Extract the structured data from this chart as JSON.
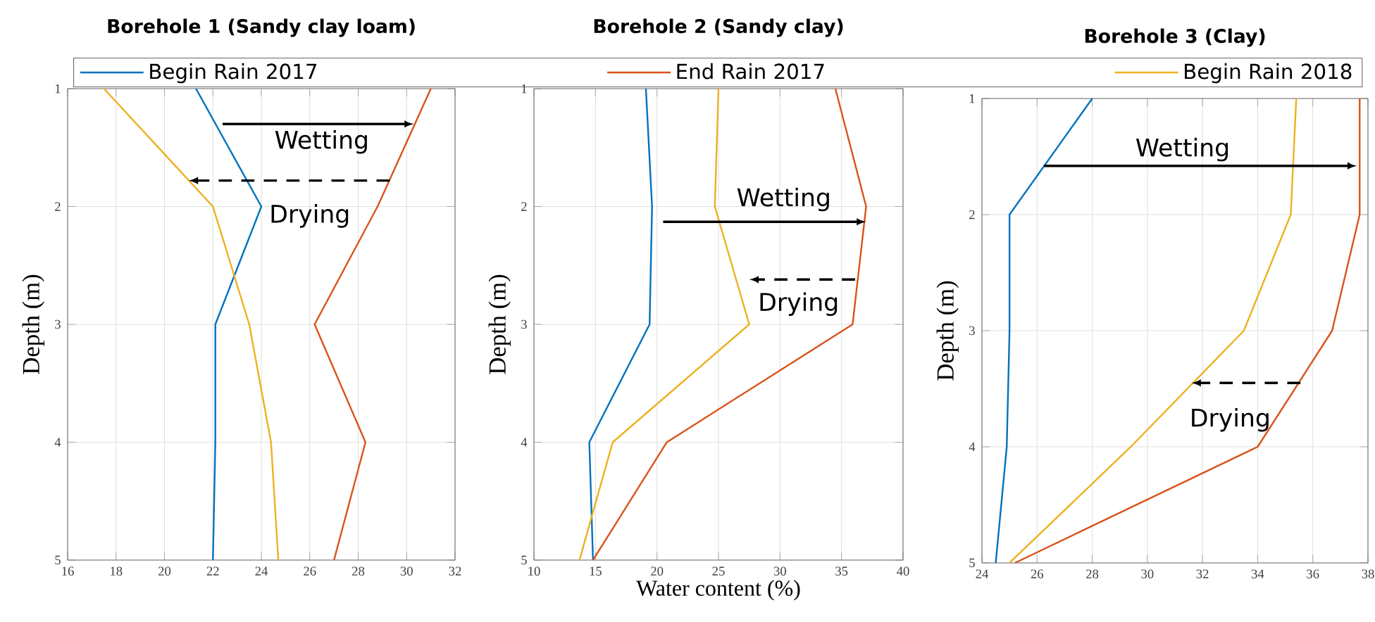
{
  "chart_data": [
    {
      "type": "line",
      "title": "Borehole 1 (Sandy clay loam)",
      "ylabel": "Depth (m)",
      "xlim": [
        16,
        32
      ],
      "xticks": [
        16,
        18,
        20,
        22,
        24,
        26,
        28,
        30,
        32
      ],
      "ylim": [
        5,
        1
      ],
      "yticks": [
        1,
        2,
        3,
        4,
        5
      ],
      "grid": true,
      "legend": "top",
      "series": [
        {
          "name": "Begin Rain 2017",
          "color": "#0072bd",
          "x": [
            21.3,
            24.0,
            22.1,
            22.1,
            22.0
          ],
          "values": [
            1,
            2,
            3,
            4,
            5
          ]
        },
        {
          "name": "End Rain 2017",
          "color": "#d95319",
          "x": [
            31.0,
            28.8,
            26.2,
            28.3,
            27.0
          ],
          "values": [
            1,
            2,
            3,
            4,
            5
          ]
        },
        {
          "name": "Begin Rain 2018",
          "color": "#edb120",
          "x": [
            17.5,
            22.0,
            23.5,
            24.4,
            24.7
          ],
          "values": [
            1,
            2,
            3,
            4,
            5
          ]
        }
      ],
      "annotations": [
        "Wetting",
        "Drying"
      ]
    },
    {
      "type": "line",
      "title": "Borehole 2 (Sandy clay)",
      "xlabel": "Water content (%)",
      "ylabel": "Depth (m)",
      "xlim": [
        10,
        40
      ],
      "xticks": [
        10,
        15,
        20,
        25,
        30,
        35,
        40
      ],
      "ylim": [
        5,
        1
      ],
      "yticks": [
        1,
        2,
        3,
        4,
        5
      ],
      "grid": true,
      "series": [
        {
          "color": "#0072bd",
          "x": [
            19.1,
            19.6,
            19.4,
            14.5,
            14.8
          ],
          "values": [
            1,
            2,
            3,
            4,
            5
          ]
        },
        {
          "color": "#d95319",
          "x": [
            34.5,
            37.0,
            35.9,
            20.8,
            14.8
          ],
          "values": [
            1,
            2,
            3,
            4,
            5
          ]
        },
        {
          "color": "#edb120",
          "x": [
            25.0,
            24.7,
            27.5,
            16.4,
            13.7
          ],
          "values": [
            1,
            2,
            3,
            4,
            5
          ]
        }
      ],
      "annotations": [
        "Wetting",
        "Drying"
      ]
    },
    {
      "type": "line",
      "title": "Borehole 3 (Clay)",
      "ylabel": "Depth (m)",
      "xlim": [
        24,
        38
      ],
      "xticks": [
        24,
        26,
        28,
        30,
        32,
        34,
        36,
        38
      ],
      "ylim": [
        5,
        1
      ],
      "yticks": [
        1,
        2,
        3,
        4,
        5
      ],
      "grid": true,
      "series": [
        {
          "color": "#0072bd",
          "x": [
            28.0,
            25.0,
            25.0,
            24.9,
            24.5
          ],
          "values": [
            1,
            2,
            3,
            4,
            5
          ]
        },
        {
          "color": "#d95319",
          "x": [
            37.7,
            37.7,
            36.7,
            34.0,
            25.2
          ],
          "values": [
            1,
            2,
            3,
            4,
            5
          ]
        },
        {
          "color": "#edb120",
          "x": [
            35.4,
            35.2,
            33.5,
            29.4,
            25.0
          ],
          "values": [
            1,
            2,
            3,
            4,
            5
          ]
        }
      ],
      "annotations": [
        "Wetting",
        {
          "text": "Drying",
          "x": 31.6,
          "y": 3.45
        }
      ]
    }
  ]
}
